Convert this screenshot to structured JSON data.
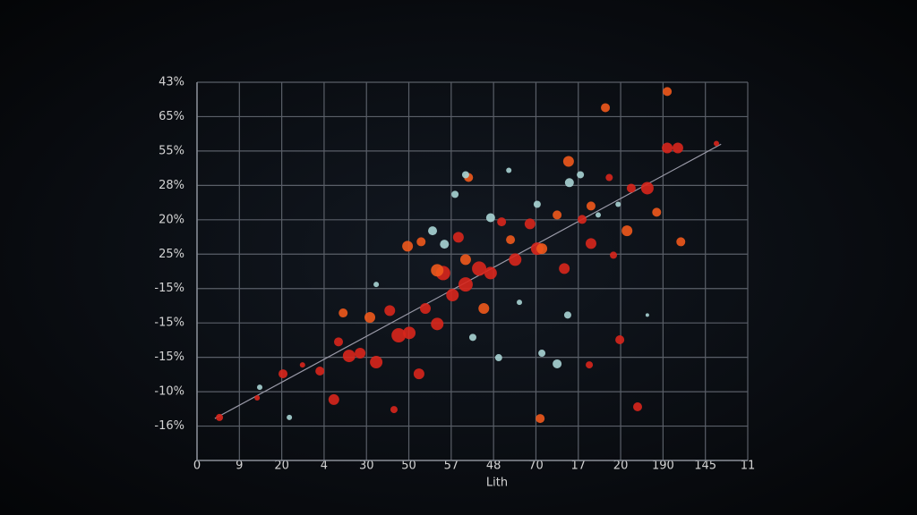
{
  "chart_data": {
    "type": "scatter",
    "xlabel": "Lith",
    "xlim": [
      0,
      13
    ],
    "ylim": [
      0,
      11
    ],
    "grid": true,
    "xticks": [
      {
        "value": 0,
        "label": "0"
      },
      {
        "value": 1,
        "label": "9"
      },
      {
        "value": 2,
        "label": "20"
      },
      {
        "value": 3,
        "label": "4"
      },
      {
        "value": 4,
        "label": "30"
      },
      {
        "value": 5,
        "label": "50"
      },
      {
        "value": 6,
        "label": "57"
      },
      {
        "value": 7,
        "label": "48"
      },
      {
        "value": 8,
        "label": "70"
      },
      {
        "value": 9,
        "label": "17"
      },
      {
        "value": 10,
        "label": "20"
      },
      {
        "value": 11,
        "label": "190"
      },
      {
        "value": 12,
        "label": "145"
      },
      {
        "value": 13,
        "label": "11"
      }
    ],
    "yticks": [
      {
        "value": 1,
        "label": "-16%"
      },
      {
        "value": 2,
        "label": "-10%"
      },
      {
        "value": 3,
        "label": "-15%"
      },
      {
        "value": 4,
        "label": "-15%"
      },
      {
        "value": 5,
        "label": "-15%"
      },
      {
        "value": 6,
        "label": "25%"
      },
      {
        "value": 7,
        "label": "20%"
      },
      {
        "value": 8,
        "label": "28%"
      },
      {
        "value": 9,
        "label": "55%"
      },
      {
        "value": 10,
        "label": "65%"
      },
      {
        "value": 11,
        "label": "43%"
      }
    ],
    "trendline": {
      "color": "#9a9aa8",
      "x": [
        0.42,
        12.37
      ],
      "y": [
        1.22,
        9.2
      ]
    },
    "series": [
      {
        "color": "#d8261c",
        "x": [
          0.53,
          1.42,
          2.03,
          2.49,
          2.9,
          3.23,
          3.34,
          3.59,
          3.85,
          4.23,
          4.55,
          4.76,
          5.01,
          5.24,
          5.39,
          5.67,
          5.81,
          6.03,
          6.17,
          6.34,
          6.66,
          6.93,
          7.19,
          7.51,
          7.86,
          8.03,
          8.67,
          9.09,
          9.3,
          9.83,
          10.25,
          10.63,
          11.1,
          10.4,
          9.98,
          9.26,
          4.65,
          11.35,
          12.26,
          9.73
        ],
        "values": [
          1.25,
          1.82,
          2.52,
          2.78,
          2.6,
          1.77,
          3.45,
          3.04,
          3.12,
          2.86,
          4.36,
          3.64,
          3.71,
          2.52,
          4.42,
          3.97,
          5.45,
          4.81,
          6.49,
          5.12,
          5.58,
          5.45,
          6.94,
          5.84,
          6.88,
          6.16,
          5.58,
          7.01,
          6.31,
          5.97,
          7.92,
          7.92,
          9.09,
          1.56,
          3.51,
          2.78,
          1.48,
          9.09,
          9.22,
          8.23
        ],
        "sizes": [
          4,
          3,
          5,
          3,
          5,
          6,
          5,
          7,
          6,
          7,
          6,
          8,
          7,
          6,
          6,
          7,
          8,
          7,
          6,
          8,
          8,
          7,
          5,
          7,
          6,
          7,
          6,
          5,
          6,
          4,
          5,
          7,
          6,
          5,
          5,
          4,
          4,
          6,
          3,
          4
        ]
      },
      {
        "color": "#f0591c",
        "x": [
          3.45,
          4.08,
          4.97,
          5.29,
          5.67,
          6.34,
          6.41,
          6.77,
          7.4,
          8.1,
          8.14,
          8.5,
          8.77,
          9.3,
          9.64,
          10.15,
          10.85,
          11.1,
          11.42
        ],
        "values": [
          4.29,
          4.16,
          6.23,
          6.36,
          5.53,
          5.84,
          8.23,
          4.42,
          6.42,
          1.22,
          6.16,
          7.14,
          8.7,
          7.4,
          10.26,
          6.68,
          7.22,
          10.73,
          6.36
        ],
        "sizes": [
          5,
          6,
          6,
          5,
          7,
          6,
          5,
          6,
          5,
          5,
          6,
          5,
          6,
          5,
          5,
          6,
          5,
          5,
          5
        ]
      },
      {
        "color": "#a8d4d4",
        "x": [
          1.48,
          2.18,
          4.23,
          6.09,
          6.34,
          6.51,
          6.93,
          7.12,
          7.36,
          7.61,
          8.03,
          8.14,
          8.5,
          8.75,
          8.79,
          9.05,
          9.47,
          9.94,
          10.63,
          5.56,
          5.84
        ],
        "values": [
          2.13,
          1.25,
          5.12,
          7.74,
          8.31,
          3.58,
          7.06,
          2.99,
          8.44,
          4.6,
          7.45,
          3.12,
          2.81,
          4.23,
          8.08,
          8.31,
          7.14,
          7.45,
          4.23,
          6.68,
          6.29
        ],
        "sizes": [
          3,
          3,
          3,
          4,
          4,
          4,
          5,
          4,
          3,
          3,
          4,
          4,
          5,
          4,
          5,
          4,
          3,
          3,
          2,
          5,
          5
        ]
      }
    ]
  }
}
